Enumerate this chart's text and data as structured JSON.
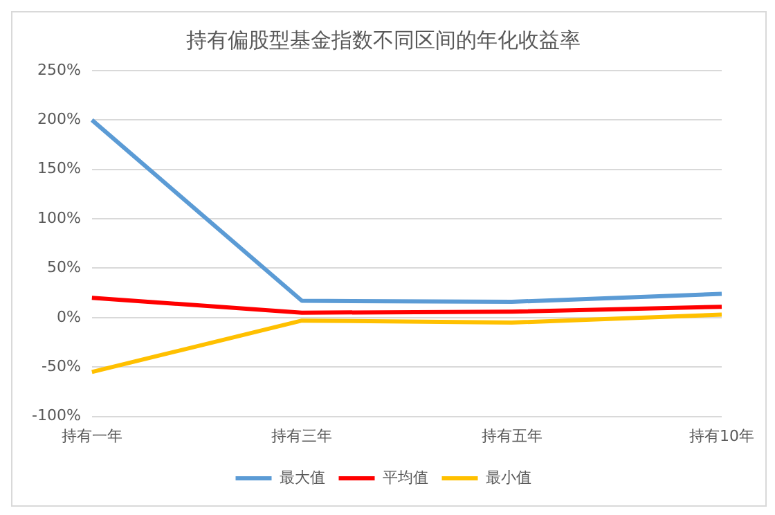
{
  "chart_data": {
    "type": "line",
    "title": "持有偏股型基金指数不同区间的年化收益率",
    "categories": [
      "持有一年",
      "持有三年",
      "持有五年",
      "持有10年"
    ],
    "series": [
      {
        "name": "最大值",
        "color": "#5b9bd5",
        "values": [
          200,
          17,
          16,
          24
        ]
      },
      {
        "name": "平均值",
        "color": "#ff0000",
        "values": [
          20,
          5,
          6,
          11
        ]
      },
      {
        "name": "最小值",
        "color": "#ffc000",
        "values": [
          -55,
          -3,
          -5,
          3
        ]
      }
    ],
    "ylim": [
      -100,
      250
    ],
    "yticks": [
      {
        "value": -100,
        "label": "-100%"
      },
      {
        "value": -50,
        "label": "-50%"
      },
      {
        "value": 0,
        "label": "0%"
      },
      {
        "value": 50,
        "label": "50%"
      },
      {
        "value": 100,
        "label": "100%"
      },
      {
        "value": 150,
        "label": "150%"
      },
      {
        "value": 200,
        "label": "200%"
      },
      {
        "value": 250,
        "label": "250%"
      }
    ],
    "grid": "y",
    "legend": "bottom",
    "marker": "none",
    "line_style": "solid"
  }
}
